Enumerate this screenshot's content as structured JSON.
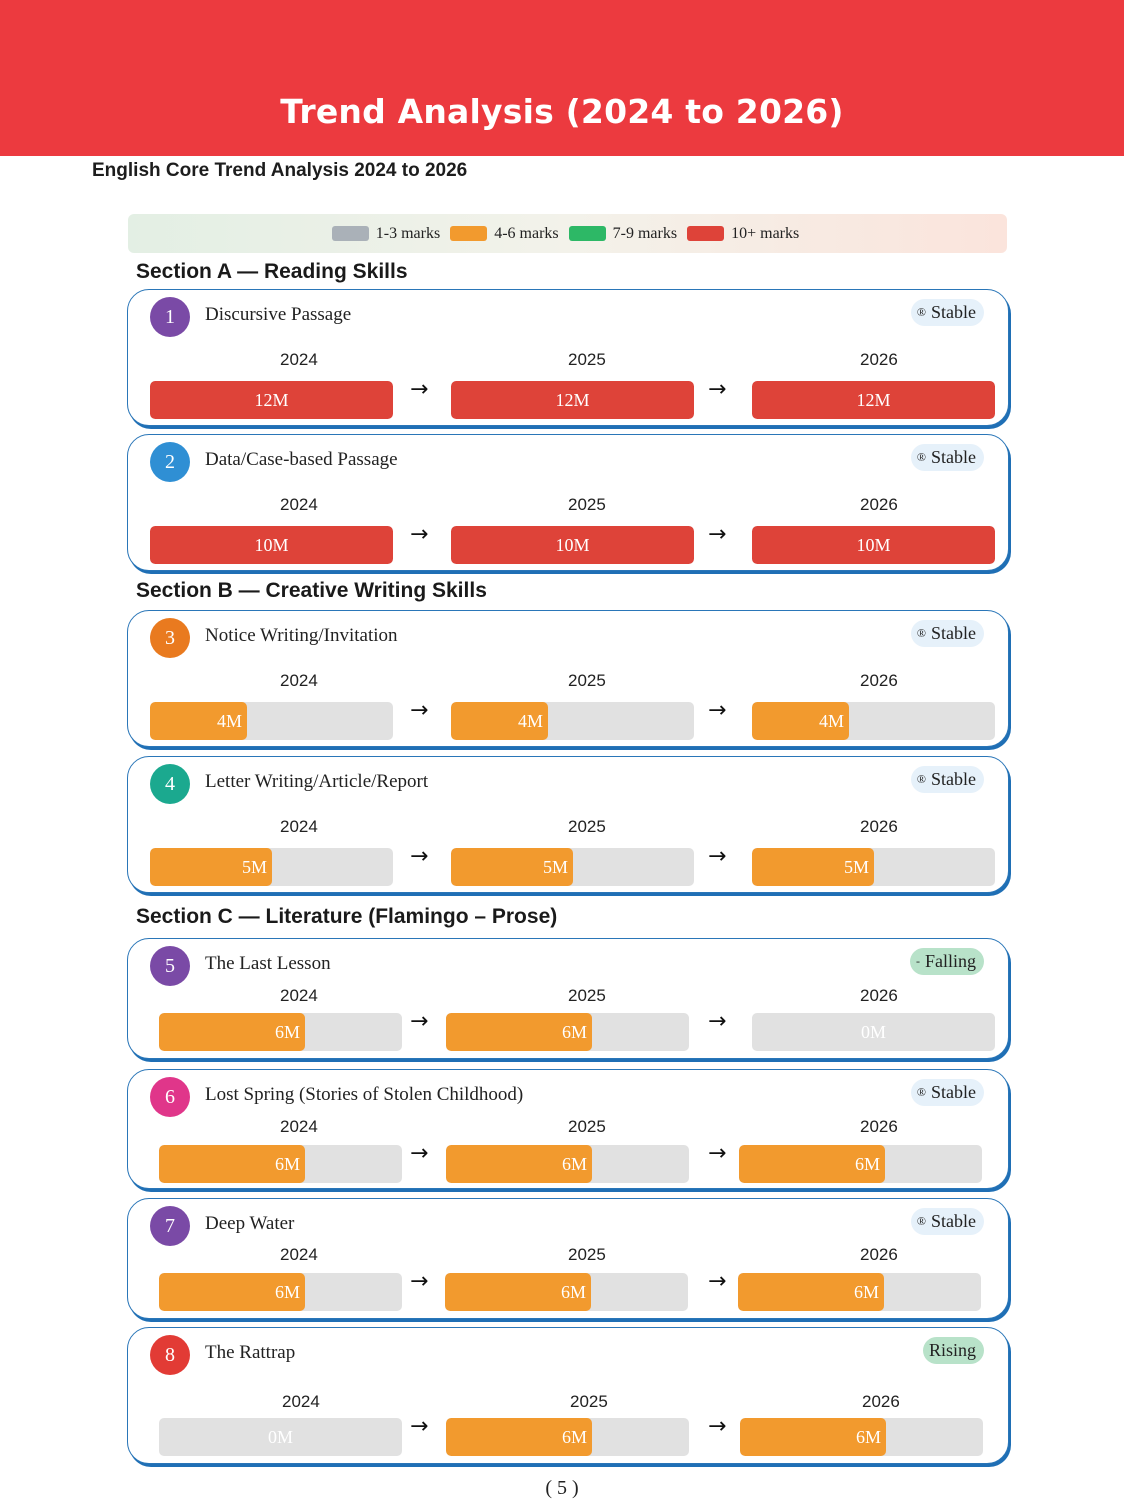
{
  "banner": {
    "title": "Trend Analysis (2024 to 2026)"
  },
  "subtitle": "English Core Trend Analysis 2024 to 2026",
  "legend": [
    {
      "label": "1-3 marks",
      "color": "#aab1b8"
    },
    {
      "label": "4-6 marks",
      "color": "#f29a2e"
    },
    {
      "label": "7-9 marks",
      "color": "#2db866"
    },
    {
      "label": "10+ marks",
      "color": "#de4339"
    }
  ],
  "sections": {
    "a": "Section A — Reading Skills",
    "b": "Section B — Creative Writing Skills",
    "c": "Section C — Literature (Flamingo – Prose)"
  },
  "arrow_icon": "right-arrow-icon",
  "colors": {
    "high": "#de4339",
    "mid": "#f29a2e",
    "empty": "#e1e1e1",
    "badge_blue_bg": "#e6f1fa",
    "badge_green_bg": "#b8e2c9"
  },
  "topics": [
    {
      "number": "1",
      "name": "Discursive Passage",
      "status": "Stable",
      "status_icon": "®",
      "number_color": "#7a4aa6",
      "years": [
        {
          "year": "2024",
          "label": "12M",
          "marks": 12
        },
        {
          "year": "2025",
          "label": "12M",
          "marks": 12
        },
        {
          "year": "2026",
          "label": "12M",
          "marks": 12
        }
      ]
    },
    {
      "number": "2",
      "name": "Data/Case-based Passage",
      "status": "Stable",
      "status_icon": "®",
      "number_color": "#2f8fd4",
      "years": [
        {
          "year": "2024",
          "label": "10M",
          "marks": 10
        },
        {
          "year": "2025",
          "label": "10M",
          "marks": 10
        },
        {
          "year": "2026",
          "label": "10M",
          "marks": 10
        }
      ]
    },
    {
      "number": "3",
      "name": "Notice Writing/Invitation",
      "status": "Stable",
      "status_icon": "®",
      "number_color": "#e97a1f",
      "years": [
        {
          "year": "2024",
          "label": "4M",
          "marks": 4
        },
        {
          "year": "2025",
          "label": "4M",
          "marks": 4
        },
        {
          "year": "2026",
          "label": "4M",
          "marks": 4
        }
      ]
    },
    {
      "number": "4",
      "name": "Letter Writing/Article/Report",
      "status": "Stable",
      "status_icon": "®",
      "number_color": "#1ba98f",
      "years": [
        {
          "year": "2024",
          "label": "5M",
          "marks": 5
        },
        {
          "year": "2025",
          "label": "5M",
          "marks": 5
        },
        {
          "year": "2026",
          "label": "5M",
          "marks": 5
        }
      ]
    },
    {
      "number": "5",
      "name": "The Last Lesson",
      "status": "Falling",
      "status_icon": "-",
      "number_color": "#7a4aa6",
      "years": [
        {
          "year": "2024",
          "label": "6M",
          "marks": 6
        },
        {
          "year": "2025",
          "label": "6M",
          "marks": 6
        },
        {
          "year": "2026",
          "label": "0M",
          "marks": 0
        }
      ]
    },
    {
      "number": "6",
      "name": "Lost Spring (Stories of Stolen Childhood)",
      "status": "Stable",
      "status_icon": "®",
      "number_color": "#e0368a",
      "years": [
        {
          "year": "2024",
          "label": "6M",
          "marks": 6
        },
        {
          "year": "2025",
          "label": "6M",
          "marks": 6
        },
        {
          "year": "2026",
          "label": "6M",
          "marks": 6
        }
      ]
    },
    {
      "number": "7",
      "name": "Deep Water",
      "status": "Stable",
      "status_icon": "®",
      "number_color": "#7a4aa6",
      "years": [
        {
          "year": "2024",
          "label": "6M",
          "marks": 6
        },
        {
          "year": "2025",
          "label": "6M",
          "marks": 6
        },
        {
          "year": "2026",
          "label": "6M",
          "marks": 6
        }
      ]
    },
    {
      "number": "8",
      "name": "The Rattrap",
      "status": "Rising",
      "status_icon": "",
      "number_color": "#e23b35",
      "years": [
        {
          "year": "2024",
          "label": "0M",
          "marks": 0
        },
        {
          "year": "2025",
          "label": "6M",
          "marks": 6
        },
        {
          "year": "2026",
          "label": "6M",
          "marks": 6
        }
      ]
    }
  ],
  "page_number": "( 5 )"
}
